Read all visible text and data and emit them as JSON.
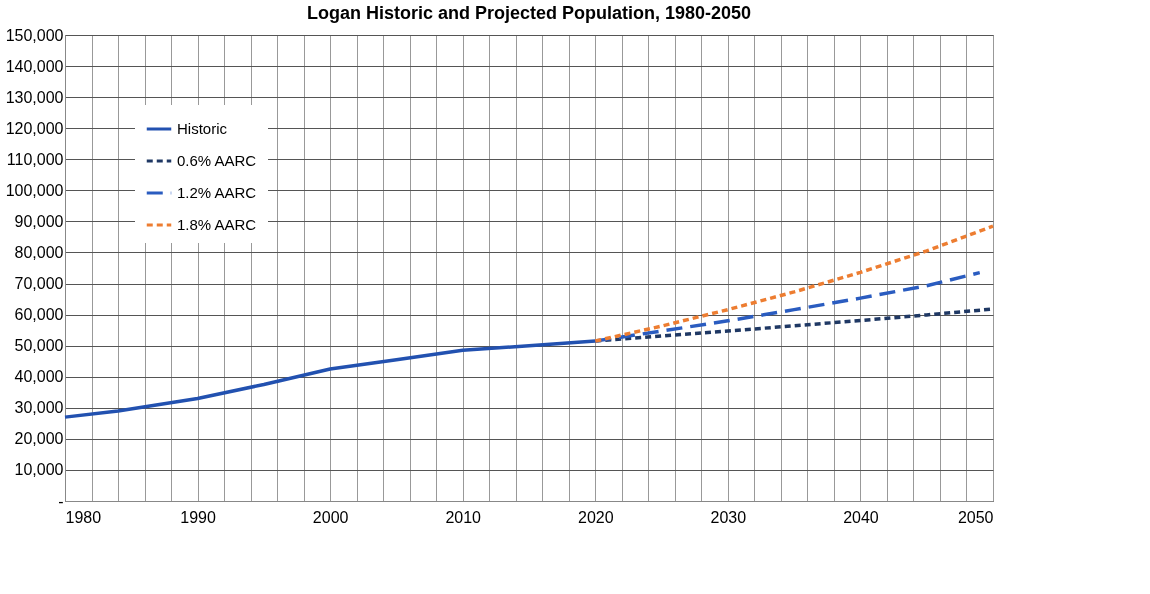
{
  "chart_data": {
    "type": "line",
    "title": "Logan Historic and Projected Population, 1980-2050",
    "series": [
      {
        "name": "Historic",
        "color": "#2251b0",
        "line_style": "solid",
        "x": [
          1980,
          1984,
          1990,
          1995,
          2000,
          2005,
          2010,
          2015,
          2020
        ],
        "values": [
          27000,
          29000,
          33000,
          37500,
          42500,
          45500,
          48500,
          50000,
          51500
        ]
      },
      {
        "name": "0.6% AARC",
        "color": "#1f3864",
        "line_style": "dashed",
        "x": [
          2020,
          2025,
          2030,
          2035,
          2040,
          2045,
          2050
        ],
        "values": [
          51500,
          53100,
          54700,
          56400,
          58100,
          59900,
          61800
        ]
      },
      {
        "name": "1.2% AARC",
        "color": "#2a5cc0",
        "line_style": "longdash",
        "x": [
          2020,
          2025,
          2030,
          2035,
          2040,
          2045,
          2049
        ],
        "values": [
          51500,
          54700,
          58000,
          61600,
          65300,
          69300,
          73500
        ]
      },
      {
        "name": "1.8% AARC",
        "color": "#ed7d31",
        "line_style": "dashed",
        "x": [
          2020,
          2025,
          2030,
          2035,
          2040,
          2045,
          2050
        ],
        "values": [
          51500,
          56300,
          61600,
          67300,
          73600,
          80500,
          88500
        ]
      }
    ],
    "xlim": [
      1980,
      2050
    ],
    "xticks": [
      1980,
      {
        "value": 1982,
        "label": null
      },
      {
        "value": 1984,
        "label": null
      },
      {
        "value": 1986,
        "label": null
      },
      {
        "value": 1988,
        "label": null
      },
      1990,
      {
        "value": 1992,
        "label": null
      },
      {
        "value": 1994,
        "label": null
      },
      {
        "value": 1996,
        "label": null
      },
      {
        "value": 1998,
        "label": null
      },
      2000,
      {
        "value": 2002,
        "label": null
      },
      {
        "value": 2004,
        "label": null
      },
      {
        "value": 2006,
        "label": null
      },
      {
        "value": 2008,
        "label": null
      },
      2010,
      {
        "value": 2012,
        "label": null
      },
      {
        "value": 2014,
        "label": null
      },
      {
        "value": 2016,
        "label": null
      },
      {
        "value": 2018,
        "label": null
      },
      2020,
      {
        "value": 2022,
        "label": null
      },
      {
        "value": 2024,
        "label": null
      },
      {
        "value": 2026,
        "label": null
      },
      {
        "value": 2028,
        "label": null
      },
      2030,
      {
        "value": 2032,
        "label": null
      },
      {
        "value": 2034,
        "label": null
      },
      {
        "value": 2036,
        "label": null
      },
      {
        "value": 2038,
        "label": null
      },
      2040,
      {
        "value": 2042,
        "label": null
      },
      {
        "value": 2044,
        "label": null
      },
      {
        "value": 2046,
        "label": null
      },
      {
        "value": 2048,
        "label": null
      },
      2050
    ],
    "ylim": [
      0,
      150000
    ],
    "yticks": [
      {
        "value": 0,
        "label": "-"
      },
      {
        "value": 10000,
        "label": "10,000"
      },
      {
        "value": 20000,
        "label": "20,000"
      },
      {
        "value": 30000,
        "label": "30,000"
      },
      {
        "value": 40000,
        "label": "40,000"
      },
      {
        "value": 50000,
        "label": "50,000"
      },
      {
        "value": 60000,
        "label": "60,000"
      },
      {
        "value": 70000,
        "label": "70,000"
      },
      {
        "value": 80000,
        "label": "80,000"
      },
      {
        "value": 90000,
        "label": "90,000"
      },
      {
        "value": 100000,
        "label": "100,000"
      },
      {
        "value": 110000,
        "label": "110,000"
      },
      {
        "value": 120000,
        "label": "120,000"
      },
      {
        "value": 130000,
        "label": "130,000"
      },
      {
        "value": 140000,
        "label": "140,000"
      },
      {
        "value": 150000,
        "label": "150,000"
      }
    ],
    "grid": true,
    "legend": "top left",
    "marker": "none"
  }
}
